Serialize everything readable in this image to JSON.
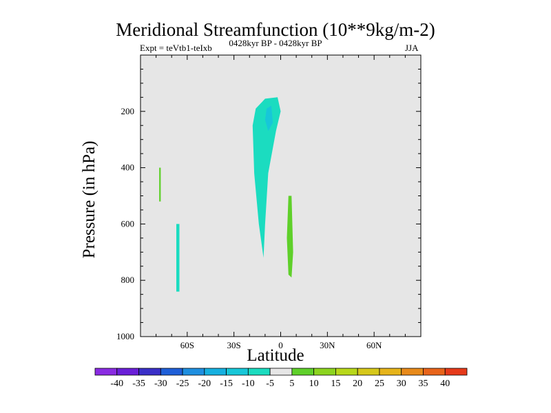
{
  "chart_data": {
    "type": "contour",
    "title": "Meridional Streamfunction (10**9kg/m-2)",
    "subtitle_left": "Expt = teVtb1-teIxb",
    "subtitle_center": "0428kyr BP - 0428kyr BP",
    "subtitle_right": "JJA",
    "xlabel": "Latitude",
    "ylabel": "Pressure (in hPa)",
    "xlim": [
      -90,
      90
    ],
    "ylim": [
      1000,
      0
    ],
    "x_ticks": [
      {
        "value": -60,
        "label": "60S"
      },
      {
        "value": -30,
        "label": "30S"
      },
      {
        "value": 0,
        "label": "0"
      },
      {
        "value": 30,
        "label": "30N"
      },
      {
        "value": 60,
        "label": "60N"
      }
    ],
    "y_ticks": [
      {
        "value": 200,
        "label": "200"
      },
      {
        "value": 400,
        "label": "400"
      },
      {
        "value": 600,
        "label": "600"
      },
      {
        "value": 800,
        "label": "800"
      },
      {
        "value": 1000,
        "label": "1000"
      }
    ],
    "colorbar": {
      "colors": [
        "#8a2be2",
        "#6a1fd8",
        "#3a2fc8",
        "#1f5fd8",
        "#1f8fe0",
        "#16b0e0",
        "#17c7d8",
        "#1bdcc0",
        "#e6e6e6",
        "#5fd02a",
        "#8cd41f",
        "#b8d81a",
        "#d6c81a",
        "#e6b41a",
        "#e88a1a",
        "#e8641a",
        "#e63a1a"
      ],
      "labels": [
        "-40",
        "-35",
        "-30",
        "-25",
        "-20",
        "-15",
        "-10",
        "-5",
        "5",
        "10",
        "15",
        "20",
        "25",
        "30",
        "35",
        "40"
      ]
    },
    "regions": [
      {
        "name": "sh-polar-green-band",
        "level": "5",
        "points": [
          [
            -80,
            0
          ],
          [
            -76,
            0
          ],
          [
            -75,
            300
          ],
          [
            -74,
            700
          ],
          [
            -74,
            920
          ],
          [
            -76,
            930
          ],
          [
            -78,
            600
          ],
          [
            -80,
            200
          ]
        ]
      },
      {
        "name": "sh-polar-inner-band",
        "level": "10",
        "points": [
          [
            -78,
            400
          ],
          [
            -77,
            400
          ],
          [
            -77,
            520
          ],
          [
            -78,
            520
          ]
        ]
      },
      {
        "name": "sh-midlat-blue-band",
        "level": "-5",
        "points": [
          [
            -70,
            0
          ],
          [
            -64,
            0
          ],
          [
            -64,
            400
          ],
          [
            -63,
            700
          ],
          [
            -63,
            950
          ],
          [
            -67,
            900
          ],
          [
            -68,
            600
          ],
          [
            -70,
            200
          ]
        ]
      },
      {
        "name": "sh-midlat-inner-band",
        "level": "-10",
        "points": [
          [
            -67,
            600
          ],
          [
            -65,
            600
          ],
          [
            -65,
            840
          ],
          [
            -67,
            840
          ]
        ]
      },
      {
        "name": "sh-30s-small-blob",
        "level": "-5",
        "points": [
          [
            -37,
            710
          ],
          [
            -36,
            720
          ],
          [
            -36,
            790
          ],
          [
            -37,
            800
          ],
          [
            -38,
            760
          ]
        ]
      },
      {
        "name": "tropical-main-cell",
        "level": "-5",
        "points": [
          [
            -25,
            180
          ],
          [
            -20,
            140
          ],
          [
            -10,
            130
          ],
          [
            3,
            140
          ],
          [
            8,
            160
          ],
          [
            5,
            220
          ],
          [
            -2,
            240
          ],
          [
            -5,
            330
          ],
          [
            -5,
            600
          ],
          [
            -2,
            800
          ],
          [
            -2,
            960
          ],
          [
            -5,
            970
          ],
          [
            -8,
            910
          ],
          [
            -15,
            660
          ],
          [
            -20,
            460
          ],
          [
            -25,
            300
          ]
        ]
      },
      {
        "name": "tropical-main-cell-inner",
        "level": "-10",
        "points": [
          [
            -16,
            190
          ],
          [
            -10,
            155
          ],
          [
            -2,
            150
          ],
          [
            0,
            200
          ],
          [
            -3,
            270
          ],
          [
            -8,
            420
          ],
          [
            -10,
            600
          ],
          [
            -11,
            720
          ],
          [
            -14,
            600
          ],
          [
            -17,
            420
          ],
          [
            -18,
            250
          ]
        ]
      },
      {
        "name": "tropical-main-cell-core",
        "level": "-15",
        "points": [
          [
            -9,
            190
          ],
          [
            -6,
            180
          ],
          [
            -5,
            240
          ],
          [
            -8,
            270
          ],
          [
            -10,
            230
          ]
        ]
      },
      {
        "name": "eq-green-cell",
        "level": "5",
        "points": [
          [
            6,
            80
          ],
          [
            7,
            240
          ],
          [
            7,
            500
          ],
          [
            8,
            700
          ],
          [
            11,
            830
          ],
          [
            10,
            940
          ],
          [
            6,
            960
          ],
          [
            4,
            830
          ],
          [
            3,
            600
          ],
          [
            4,
            360
          ],
          [
            5,
            200
          ]
        ]
      },
      {
        "name": "eq-green-cell-inner",
        "level": "10",
        "points": [
          [
            5,
            500
          ],
          [
            7,
            500
          ],
          [
            8,
            700
          ],
          [
            7,
            790
          ],
          [
            5,
            780
          ],
          [
            4,
            650
          ]
        ]
      },
      {
        "name": "nh-tropic-blue-cell",
        "level": "-5",
        "points": [
          [
            12,
            230
          ],
          [
            14,
            300
          ],
          [
            14,
            600
          ],
          [
            13,
            800
          ],
          [
            11,
            960
          ],
          [
            9,
            940
          ],
          [
            9,
            750
          ],
          [
            10,
            420
          ]
        ]
      },
      {
        "name": "nh-subtropic-blue-cell",
        "level": "-5",
        "points": [
          [
            17,
            550
          ],
          [
            20,
            540
          ],
          [
            21,
            700
          ],
          [
            20,
            950
          ],
          [
            18,
            960
          ],
          [
            16,
            800
          ]
        ]
      },
      {
        "name": "nh-subtropic-green-cell",
        "level": "5",
        "points": [
          [
            27,
            280
          ],
          [
            30,
            380
          ],
          [
            31,
            580
          ],
          [
            29,
            850
          ],
          [
            27,
            860
          ],
          [
            26,
            700
          ],
          [
            25,
            460
          ]
        ]
      },
      {
        "name": "nh-upper-blue-wisp",
        "level": "-5",
        "points": [
          [
            19,
            0
          ],
          [
            21,
            0
          ],
          [
            21,
            130
          ],
          [
            20,
            140
          ]
        ]
      }
    ]
  }
}
